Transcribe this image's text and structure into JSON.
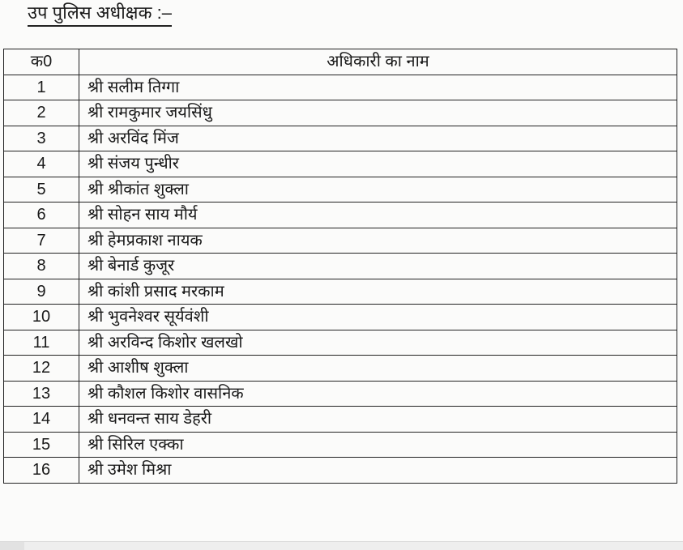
{
  "title": "उप पुलिस अधीक्षक :–",
  "table": {
    "headers": [
      "क0",
      "अधिकारी का नाम"
    ],
    "rows": [
      {
        "num": "1",
        "name": "श्री सलीम तिग्गा"
      },
      {
        "num": "2",
        "name": "श्री रामकुमार जयसिंधु"
      },
      {
        "num": "3",
        "name": "श्री अरविंद मिंज"
      },
      {
        "num": "4",
        "name": "श्री संजय पुन्धीर"
      },
      {
        "num": "5",
        "name": "श्री श्रीकांत शुक्ला"
      },
      {
        "num": "6",
        "name": "श्री सोहन साय मौर्य"
      },
      {
        "num": "7",
        "name": "श्री हेमप्रकाश नायक"
      },
      {
        "num": "8",
        "name": "श्री बेनार्ड कुजूर"
      },
      {
        "num": "9",
        "name": "श्री कांशी प्रसाद मरकाम"
      },
      {
        "num": "10",
        "name": "श्री भुवनेश्वर सूर्यवंशी"
      },
      {
        "num": "11",
        "name": "श्री अरविन्द किशोर खलखो"
      },
      {
        "num": "12",
        "name": "श्री आशीष शुक्ला"
      },
      {
        "num": "13",
        "name": "श्री कौशल किशोर वासनिक"
      },
      {
        "num": "14",
        "name": "श्री धनवन्त साय डेहरी"
      },
      {
        "num": "15",
        "name": "श्री सिरिल एक्का"
      },
      {
        "num": "16",
        "name": "श्री उमेश मिश्रा"
      }
    ]
  }
}
